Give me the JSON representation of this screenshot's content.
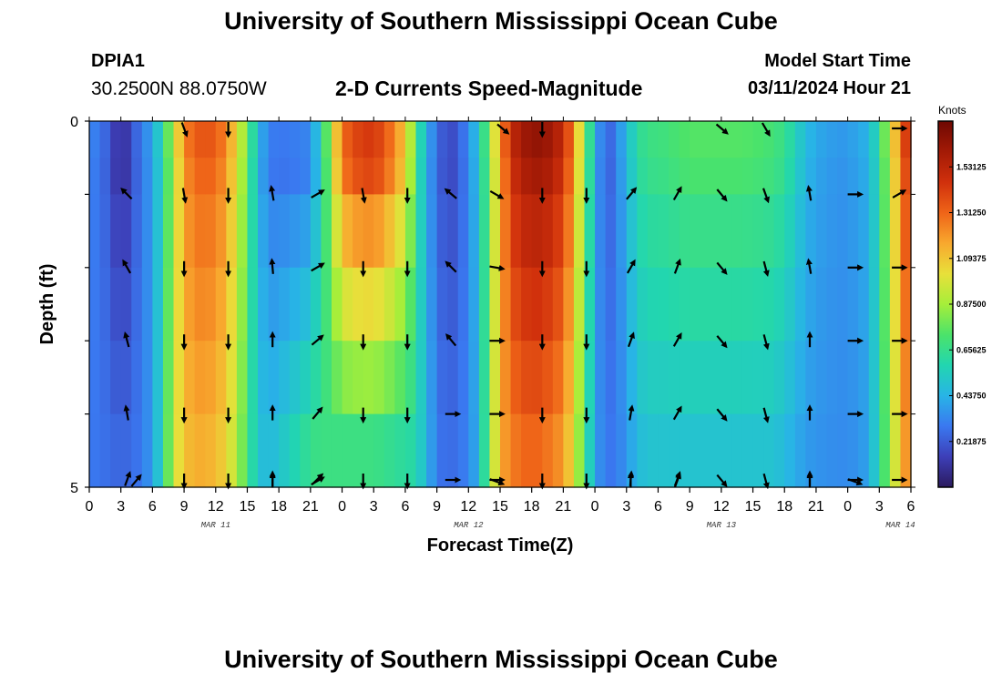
{
  "page": {
    "title": "University of Southern Mississippi Ocean Cube",
    "title_bottom": "University of Southern Mississippi Ocean Cube",
    "station": "DPIA1",
    "coordinates": "30.2500N  88.0750W",
    "subtitle": "2-D Currents Speed-Magnitude",
    "model_start_label": "Model Start Time",
    "model_start_value": "03/11/2024 Hour 21"
  },
  "chart_data": {
    "type": "heatmap",
    "title": "2-D Currents Speed-Magnitude",
    "xlabel": "Forecast Time(Z)",
    "ylabel": "Depth (ft)",
    "x_tick_labels": [
      "0",
      "3",
      "6",
      "9",
      "12",
      "15",
      "18",
      "21",
      "0",
      "3",
      "6",
      "9",
      "12",
      "15",
      "18",
      "21",
      "0",
      "3",
      "6",
      "9",
      "12",
      "15",
      "18",
      "21",
      "0",
      "3",
      "6"
    ],
    "x_range_hours": [
      0,
      78
    ],
    "date_labels": [
      {
        "label": "MAR 11",
        "hour": 12
      },
      {
        "label": "MAR 12",
        "hour": 36
      },
      {
        "label": "MAR 13",
        "hour": 60
      },
      {
        "label": "MAR 14",
        "hour": 77
      }
    ],
    "y_tick_labels": [
      "0",
      "5"
    ],
    "ylim": [
      0,
      5
    ],
    "colorbar": {
      "unit": "Knots",
      "min": 0,
      "max": 1.75,
      "ticks": [
        "0.21875",
        "0.43750",
        "0.65625",
        "0.87500",
        "1.09375",
        "1.31250",
        "1.53125"
      ],
      "tick_values": [
        0.21875,
        0.4375,
        0.65625,
        0.875,
        1.09375,
        1.3125,
        1.53125
      ],
      "colors": [
        "#2b1a5e",
        "#3d3fb8",
        "#3a78f0",
        "#28b4e6",
        "#22d6b0",
        "#4be36a",
        "#a6ee3a",
        "#e8e03a",
        "#f8a82e",
        "#ef6418",
        "#d0300c",
        "#a31a06",
        "#6e0802"
      ]
    },
    "speed_keyframes": {
      "hours": [
        0,
        1,
        2,
        3,
        4,
        5,
        6,
        7,
        8,
        9,
        10,
        11,
        12,
        13,
        14,
        15,
        16,
        17,
        18,
        19,
        20,
        21,
        22,
        23,
        24,
        25,
        26,
        27,
        28,
        29,
        30,
        31,
        32,
        33,
        34,
        35,
        36,
        37,
        38,
        39,
        40,
        41,
        42,
        43,
        44,
        45,
        46,
        47,
        48,
        49,
        50,
        51,
        52,
        53,
        54,
        55,
        56,
        57,
        58,
        59,
        60,
        61,
        62,
        63,
        64,
        65,
        66,
        67,
        68,
        69,
        70,
        71,
        72,
        73,
        74,
        75,
        76,
        77,
        78
      ],
      "surface": [
        0.32,
        0.28,
        0.2,
        0.06,
        0.18,
        0.3,
        0.38,
        0.6,
        0.9,
        1.2,
        1.3,
        1.32,
        1.3,
        1.2,
        1.0,
        0.75,
        0.45,
        0.3,
        0.28,
        0.29,
        0.3,
        0.32,
        0.55,
        0.9,
        1.25,
        1.35,
        1.38,
        1.4,
        1.32,
        1.2,
        1.05,
        0.7,
        0.4,
        0.28,
        0.14,
        0.22,
        0.32,
        0.5,
        0.8,
        1.15,
        1.45,
        1.55,
        1.6,
        1.6,
        1.55,
        1.45,
        1.2,
        0.8,
        0.45,
        0.2,
        0.3,
        0.45,
        0.6,
        0.66,
        0.66,
        0.68,
        0.7,
        0.72,
        0.72,
        0.72,
        0.72,
        0.72,
        0.72,
        0.71,
        0.7,
        0.68,
        0.64,
        0.55,
        0.45,
        0.4,
        0.38,
        0.36,
        0.36,
        0.4,
        0.42,
        0.62,
        0.9,
        1.25,
        1.5
      ],
      "bottom": [
        0.3,
        0.28,
        0.26,
        0.24,
        0.26,
        0.3,
        0.38,
        0.6,
        0.95,
        1.1,
        1.15,
        1.15,
        1.12,
        1.05,
        0.9,
        0.7,
        0.5,
        0.45,
        0.5,
        0.55,
        0.6,
        0.66,
        0.68,
        0.68,
        0.68,
        0.68,
        0.68,
        0.68,
        0.66,
        0.64,
        0.62,
        0.6,
        0.45,
        0.3,
        0.25,
        0.28,
        0.32,
        0.45,
        0.8,
        1.15,
        1.25,
        1.3,
        1.32,
        1.3,
        1.25,
        1.2,
        1.0,
        0.7,
        0.4,
        0.28,
        0.3,
        0.36,
        0.46,
        0.5,
        0.5,
        0.5,
        0.5,
        0.5,
        0.5,
        0.5,
        0.5,
        0.5,
        0.5,
        0.5,
        0.5,
        0.5,
        0.46,
        0.42,
        0.38,
        0.36,
        0.35,
        0.34,
        0.34,
        0.36,
        0.4,
        0.6,
        0.85,
        1.1,
        1.3
      ]
    },
    "vector_rows_depth_ft": [
      1.0,
      2.0,
      3.0,
      4.0,
      4.9
    ],
    "vectors": [
      {
        "hour": 3.6,
        "angles": [
          -45,
          -30,
          -15,
          -10,
          20
        ]
      },
      {
        "hour": 9,
        "angles": [
          170,
          180,
          180,
          180,
          180
        ]
      },
      {
        "hour": 13.2,
        "angles": [
          180,
          180,
          180,
          180,
          180
        ]
      },
      {
        "hour": 17.4,
        "angles": [
          -10,
          -5,
          0,
          0,
          0
        ]
      },
      {
        "hour": 21.6,
        "angles": [
          60,
          60,
          50,
          40,
          45
        ]
      },
      {
        "hour": 26,
        "angles": [
          170,
          180,
          180,
          180,
          180
        ]
      },
      {
        "hour": 30.2,
        "angles": [
          180,
          180,
          180,
          180,
          180
        ]
      },
      {
        "hour": 34.4,
        "angles": [
          -50,
          -45,
          -40,
          90,
          90
        ]
      },
      {
        "hour": 38.6,
        "angles": [
          120,
          100,
          90,
          90,
          90
        ]
      },
      {
        "hour": 43,
        "angles": [
          180,
          180,
          180,
          180,
          180
        ]
      },
      {
        "hour": 47.2,
        "angles": [
          180,
          180,
          180,
          180,
          180
        ]
      },
      {
        "hour": 51.4,
        "angles": [
          40,
          30,
          20,
          10,
          5
        ]
      },
      {
        "hour": 55.8,
        "angles": [
          30,
          20,
          30,
          30,
          20
        ]
      },
      {
        "hour": 60,
        "angles": [
          140,
          140,
          140,
          140,
          140
        ]
      },
      {
        "hour": 64.2,
        "angles": [
          160,
          165,
          165,
          165,
          165
        ]
      },
      {
        "hour": 68.4,
        "angles": [
          -10,
          -10,
          0,
          0,
          0
        ]
      },
      {
        "hour": 72.6,
        "angles": [
          90,
          90,
          90,
          90,
          90
        ]
      },
      {
        "hour": 76.8,
        "angles": [
          60,
          90,
          90,
          90,
          90
        ]
      }
    ],
    "top_vectors": [
      {
        "hour": 9,
        "angle": 160
      },
      {
        "hour": 13.2,
        "angle": 180
      },
      {
        "hour": 39.2,
        "angle": 130
      },
      {
        "hour": 43,
        "angle": 180
      },
      {
        "hour": 60,
        "angle": 130
      },
      {
        "hour": 64.2,
        "angle": 150
      },
      {
        "hour": 76.8,
        "angle": 90
      }
    ],
    "bottom_vectors": [
      {
        "hour": 4.4,
        "angle": 40
      },
      {
        "hour": 17.4,
        "angle": 0
      },
      {
        "hour": 21.6,
        "angle": 60
      },
      {
        "hour": 38.6,
        "angle": 110
      },
      {
        "hour": 51.4,
        "angle": 0
      },
      {
        "hour": 55.8,
        "angle": 20
      },
      {
        "hour": 68.4,
        "angle": 0
      },
      {
        "hour": 72.6,
        "angle": 110
      }
    ]
  }
}
